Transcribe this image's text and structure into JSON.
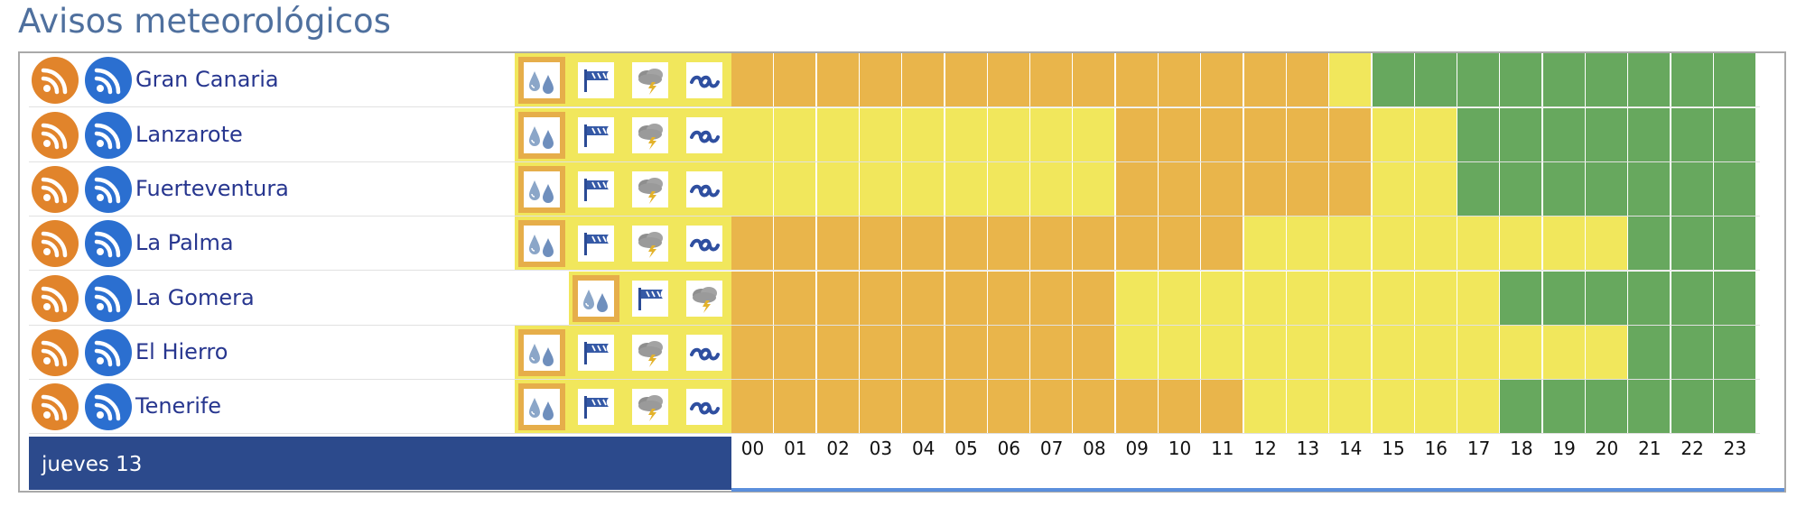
{
  "title": "Avisos meteorológicos",
  "date_label": "jueves 13",
  "colors": {
    "orange": "#e9b54b",
    "yellow": "#f1e75c",
    "green": "#67a85e",
    "dark_blue": "#2c4a8c",
    "title": "#4f709e"
  },
  "hours": [
    "00",
    "01",
    "02",
    "03",
    "04",
    "05",
    "06",
    "07",
    "08",
    "09",
    "10",
    "11",
    "12",
    "13",
    "14",
    "15",
    "16",
    "17",
    "18",
    "19",
    "20",
    "21",
    "22",
    "23"
  ],
  "rows": [
    {
      "zone": "Gran Canaria",
      "phenomena": [
        "rain-icon",
        "wind-icon",
        "storm-icon",
        "coastal-icon"
      ],
      "highlight": 0,
      "levels": [
        "o",
        "o",
        "o",
        "o",
        "o",
        "o",
        "o",
        "o",
        "o",
        "o",
        "o",
        "o",
        "o",
        "o",
        "y",
        "g",
        "g",
        "g",
        "g",
        "g",
        "g",
        "g",
        "g",
        "g"
      ]
    },
    {
      "zone": "Lanzarote",
      "phenomena": [
        "rain-icon",
        "wind-icon",
        "storm-icon",
        "coastal-icon"
      ],
      "highlight": 0,
      "levels": [
        "y",
        "y",
        "y",
        "y",
        "y",
        "y",
        "y",
        "y",
        "y",
        "o",
        "o",
        "o",
        "o",
        "o",
        "o",
        "y",
        "y",
        "g",
        "g",
        "g",
        "g",
        "g",
        "g",
        "g"
      ]
    },
    {
      "zone": "Fuerteventura",
      "phenomena": [
        "rain-icon",
        "wind-icon",
        "storm-icon",
        "coastal-icon"
      ],
      "highlight": 0,
      "levels": [
        "y",
        "y",
        "y",
        "y",
        "y",
        "y",
        "y",
        "y",
        "y",
        "o",
        "o",
        "o",
        "o",
        "o",
        "o",
        "y",
        "y",
        "g",
        "g",
        "g",
        "g",
        "g",
        "g",
        "g"
      ]
    },
    {
      "zone": "La Palma",
      "phenomena": [
        "rain-icon",
        "wind-icon",
        "storm-icon",
        "coastal-icon"
      ],
      "highlight": 0,
      "levels": [
        "o",
        "o",
        "o",
        "o",
        "o",
        "o",
        "o",
        "o",
        "o",
        "o",
        "o",
        "o",
        "y",
        "y",
        "y",
        "y",
        "y",
        "y",
        "y",
        "y",
        "y",
        "g",
        "g",
        "g"
      ]
    },
    {
      "zone": "La Gomera",
      "phenomena": [
        "rain-icon",
        "wind-icon",
        "storm-icon"
      ],
      "highlight": 0,
      "levels": [
        "o",
        "o",
        "o",
        "o",
        "o",
        "o",
        "o",
        "o",
        "o",
        "y",
        "y",
        "y",
        "y",
        "y",
        "y",
        "y",
        "y",
        "y",
        "g",
        "g",
        "g",
        "g",
        "g",
        "g"
      ]
    },
    {
      "zone": "El Hierro",
      "phenomena": [
        "rain-icon",
        "wind-icon",
        "storm-icon",
        "coastal-icon"
      ],
      "highlight": 0,
      "levels": [
        "o",
        "o",
        "o",
        "o",
        "o",
        "o",
        "o",
        "o",
        "o",
        "y",
        "y",
        "y",
        "y",
        "y",
        "y",
        "y",
        "y",
        "y",
        "y",
        "y",
        "y",
        "g",
        "g",
        "g"
      ]
    },
    {
      "zone": "Tenerife",
      "phenomena": [
        "rain-icon",
        "wind-icon",
        "storm-icon",
        "coastal-icon"
      ],
      "highlight": 0,
      "levels": [
        "o",
        "o",
        "o",
        "o",
        "o",
        "o",
        "o",
        "o",
        "o",
        "o",
        "o",
        "o",
        "y",
        "y",
        "y",
        "y",
        "y",
        "y",
        "g",
        "g",
        "g",
        "g",
        "g",
        "g"
      ]
    }
  ]
}
